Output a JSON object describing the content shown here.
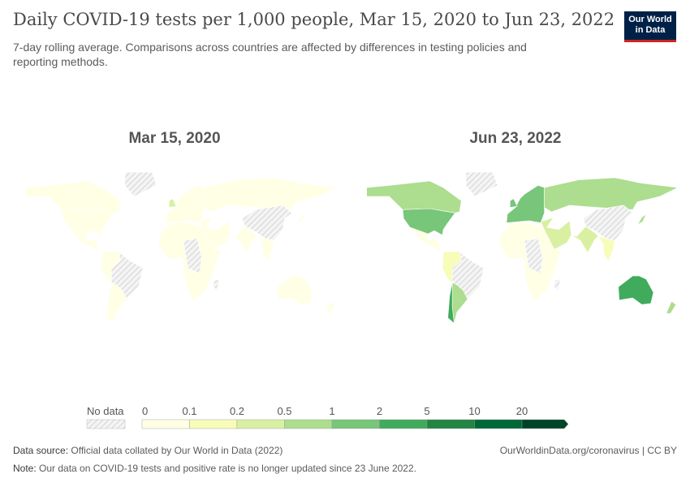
{
  "header": {
    "title": "Daily COVID-19 tests per 1,000 people, Mar 15, 2020 to Jun 23, 2022",
    "subtitle": "7-day rolling average. Comparisons across countries are affected by differences in testing policies and reporting methods.",
    "logo": "Our World in Data"
  },
  "chart_data": {
    "type": "choropleth-map",
    "title": "Daily COVID-19 tests per 1,000 people, Mar 15, 2020 to Jun 23, 2022",
    "legend": {
      "no_data_label": "No data",
      "bins": [
        "0",
        "0.1",
        "0.2",
        "0.5",
        "1",
        "2",
        "5",
        "10",
        "20"
      ],
      "colors": [
        "#ffffe5",
        "#f7fcb9",
        "#d9f0a3",
        "#addd8e",
        "#78c679",
        "#41ab5d",
        "#238443",
        "#006837",
        "#004529"
      ]
    },
    "maps": [
      {
        "label": "Mar 15, 2020",
        "regions": {
          "canada": 0,
          "usa": 0,
          "greenland": -1,
          "mexico": 0,
          "brazil": -1,
          "chile": 0,
          "argentina": 0,
          "westsa": 0,
          "europe": 0,
          "africa": 0,
          "centralafrica": -1,
          "russia": 0,
          "china": -1,
          "india": 0,
          "middleeast": 0,
          "seasia": 0,
          "australia": 0,
          "japan": 0,
          "uk": 2,
          "nz": 0,
          "madagascar": -1
        }
      },
      {
        "label": "Jun 23, 2022",
        "regions": {
          "canada": 3,
          "usa": 4,
          "greenland": -1,
          "mexico": 0,
          "brazil": -1,
          "chile": 5,
          "argentina": 3,
          "westsa": 1,
          "europe": 4,
          "africa": 0,
          "centralafrica": -1,
          "russia": 3,
          "china": -1,
          "india": 2,
          "middleeast": 2,
          "seasia": 1,
          "australia": 5,
          "japan": 3,
          "uk": 4,
          "nz": 3,
          "madagascar": -1
        }
      }
    ]
  },
  "footer": {
    "source_label": "Data source:",
    "source": "Official data collated by Our World in Data (2022)",
    "url": "OurWorldinData.org/coronavirus | CC BY",
    "note_label": "Note:",
    "note": "Our data on COVID-19 tests and positive rate is no longer updated since 23 June 2022."
  }
}
